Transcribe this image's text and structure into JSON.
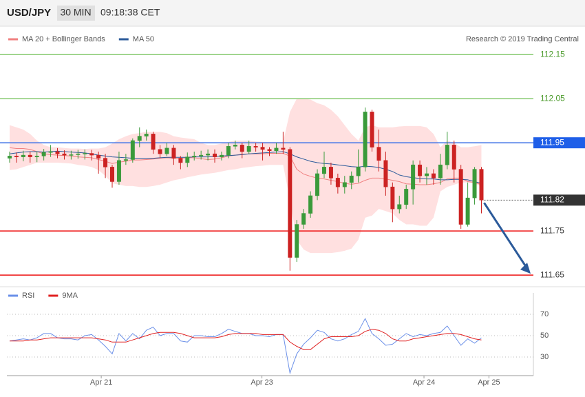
{
  "chart_data": [
    {
      "type": "candlestick",
      "title": "USD/JPY",
      "timeframe": "30 MIN",
      "time": "09:18:38 CET",
      "credit": "Research © 2019 Trading Central",
      "xlim": [
        -0.4,
        76.6
      ],
      "ylim": [
        111.633,
        112.18
      ],
      "up_color": "#3a9a3a",
      "down_color": "#cc2222",
      "open": [
        111.915,
        111.92,
        111.918,
        111.922,
        111.918,
        111.92,
        111.928,
        111.93,
        111.925,
        111.922,
        111.923,
        111.925,
        111.926,
        111.922,
        111.915,
        111.895,
        111.862,
        111.91,
        111.912,
        111.955,
        111.965,
        111.97,
        111.935,
        111.925,
        111.938,
        111.915,
        111.905,
        111.918,
        111.92,
        111.922,
        111.925,
        111.918,
        111.922,
        111.942,
        111.945,
        111.93,
        111.942,
        111.94,
        111.935,
        111.932,
        111.938,
        111.935,
        111.69,
        111.765,
        111.79,
        111.83,
        111.88,
        111.895,
        111.87,
        111.85,
        111.86,
        111.875,
        111.895,
        112.02,
        111.94,
        111.91,
        111.85,
        111.8,
        111.81,
        111.845,
        111.9,
        111.875,
        111.88,
        111.87,
        111.9,
        111.945,
        111.89,
        111.765,
        111.825,
        111.89
      ],
      "high": [
        111.93,
        111.928,
        111.932,
        111.93,
        111.93,
        111.936,
        111.945,
        111.938,
        111.933,
        111.932,
        111.934,
        111.935,
        111.934,
        111.93,
        111.925,
        111.9,
        111.93,
        111.925,
        111.96,
        111.985,
        111.98,
        111.975,
        111.945,
        111.95,
        111.945,
        111.92,
        111.928,
        111.93,
        111.932,
        111.935,
        111.935,
        111.93,
        111.95,
        111.955,
        111.95,
        111.955,
        111.95,
        111.95,
        111.94,
        111.95,
        111.975,
        111.94,
        111.775,
        111.8,
        111.84,
        111.89,
        111.93,
        111.905,
        111.88,
        111.875,
        111.885,
        111.935,
        112.03,
        112.025,
        111.98,
        111.93,
        111.86,
        111.83,
        111.855,
        111.91,
        111.91,
        111.895,
        111.89,
        111.925,
        111.975,
        111.955,
        111.9,
        111.86,
        111.895,
        111.895
      ],
      "low": [
        111.905,
        111.905,
        111.908,
        111.905,
        111.906,
        111.91,
        111.918,
        111.915,
        111.912,
        111.912,
        111.914,
        111.912,
        111.91,
        111.88,
        111.87,
        111.848,
        111.855,
        111.9,
        111.905,
        111.94,
        111.955,
        111.925,
        111.915,
        111.92,
        111.9,
        111.89,
        111.895,
        111.91,
        111.912,
        111.91,
        111.905,
        111.91,
        111.915,
        111.935,
        111.915,
        111.925,
        111.93,
        111.91,
        111.92,
        111.925,
        111.925,
        111.66,
        111.68,
        111.755,
        111.78,
        111.82,
        111.87,
        111.855,
        111.835,
        111.835,
        111.845,
        111.86,
        111.885,
        111.93,
        111.885,
        111.83,
        111.77,
        111.79,
        111.8,
        111.81,
        111.86,
        111.855,
        111.855,
        111.855,
        111.89,
        111.86,
        111.755,
        111.76,
        111.81,
        111.79
      ],
      "close": [
        111.92,
        111.918,
        111.922,
        111.918,
        111.92,
        111.928,
        111.93,
        111.925,
        111.922,
        111.923,
        111.925,
        111.926,
        111.922,
        111.915,
        111.895,
        111.862,
        111.91,
        111.912,
        111.955,
        111.965,
        111.97,
        111.935,
        111.925,
        111.938,
        111.915,
        111.905,
        111.918,
        111.92,
        111.922,
        111.925,
        111.918,
        111.922,
        111.942,
        111.945,
        111.93,
        111.942,
        111.94,
        111.935,
        111.932,
        111.938,
        111.935,
        111.69,
        111.765,
        111.79,
        111.83,
        111.88,
        111.895,
        111.87,
        111.85,
        111.86,
        111.875,
        111.895,
        112.02,
        111.94,
        111.91,
        111.85,
        111.8,
        111.81,
        111.845,
        111.9,
        111.875,
        111.88,
        111.87,
        111.9,
        111.945,
        111.89,
        111.765,
        111.825,
        111.89,
        111.82
      ],
      "series": [
        {
          "name": "MA 20 + Bollinger Bands",
          "color": "#f08080",
          "band_color": "#ffe0e0",
          "values": [
            111.939,
            111.937,
            111.937,
            111.935,
            111.93,
            111.925,
            111.923,
            111.922,
            111.921,
            111.92,
            111.918,
            111.917,
            111.916,
            111.912,
            111.908,
            111.903,
            111.906,
            111.908,
            111.911,
            111.911,
            111.912,
            111.913,
            111.915,
            111.916,
            111.915,
            111.915,
            111.916,
            111.916,
            111.914,
            111.912,
            111.913,
            111.916,
            111.92,
            111.922,
            111.924,
            111.925,
            111.925,
            111.925,
            111.926,
            111.926,
            111.926,
            111.92,
            111.89,
            111.879,
            111.874,
            111.87,
            111.868,
            111.865,
            111.862,
            111.858,
            111.856,
            111.858,
            111.865,
            111.87,
            111.87,
            111.868,
            111.865,
            111.862,
            111.857,
            111.856,
            111.855,
            111.855,
            111.857,
            111.86,
            111.868,
            111.87,
            111.87,
            111.862,
            111.86,
            111.855
          ],
          "upper": [
            111.99,
            111.985,
            111.98,
            111.97,
            111.955,
            111.945,
            111.94,
            111.94,
            111.938,
            111.937,
            111.937,
            111.936,
            111.937,
            111.937,
            111.94,
            111.948,
            111.958,
            111.965,
            111.97,
            111.972,
            111.975,
            111.975,
            111.975,
            111.972,
            111.965,
            111.962,
            111.96,
            111.958,
            111.95,
            111.945,
            111.945,
            111.948,
            111.952,
            111.955,
            111.955,
            111.955,
            111.953,
            111.952,
            111.952,
            111.952,
            111.952,
            112.02,
            112.05,
            112.05,
            112.048,
            112.04,
            112.035,
            112.025,
            112.01,
            111.99,
            111.97,
            111.955,
            111.985,
            111.99,
            111.985,
            111.985,
            111.985,
            111.987,
            111.988,
            111.988,
            111.988,
            111.985,
            111.97,
            111.94,
            111.955,
            111.95,
            111.94,
            111.94,
            111.942,
            111.945
          ],
          "lower": [
            111.888,
            111.89,
            111.895,
            111.9,
            111.905,
            111.905,
            111.905,
            111.905,
            111.904,
            111.903,
            111.9,
            111.898,
            111.895,
            111.888,
            111.875,
            111.858,
            111.855,
            111.852,
            111.852,
            111.85,
            111.85,
            111.852,
            111.855,
            111.86,
            111.865,
            111.868,
            111.872,
            111.875,
            111.878,
            111.88,
            111.882,
            111.885,
            111.888,
            111.89,
            111.893,
            111.895,
            111.897,
            111.898,
            111.9,
            111.9,
            111.9,
            111.82,
            111.73,
            111.708,
            111.7,
            111.7,
            111.7,
            111.7,
            111.702,
            111.705,
            111.71,
            111.73,
            111.78,
            111.785,
            111.8,
            111.795,
            111.79,
            111.775,
            111.765,
            111.765,
            111.762,
            111.762,
            111.78,
            111.84,
            111.85,
            111.855,
            111.86,
            111.86,
            111.858,
            111.85
          ]
        },
        {
          "name": "MA 50",
          "color": "#2b5a9a",
          "values": [
            111.925,
            111.927,
            111.929,
            111.93,
            111.93,
            111.929,
            111.93,
            111.931,
            111.93,
            111.929,
            111.928,
            111.927,
            111.925,
            111.922,
            111.92,
            111.918,
            111.917,
            111.916,
            111.915,
            111.915,
            111.915,
            111.915,
            111.916,
            111.917,
            111.917,
            111.917,
            111.917,
            111.918,
            111.918,
            111.918,
            111.919,
            111.92,
            111.921,
            111.922,
            111.923,
            111.925,
            111.926,
            111.927,
            111.928,
            111.929,
            111.93,
            111.925,
            111.918,
            111.913,
            111.908,
            111.905,
            111.903,
            111.902,
            111.9,
            111.898,
            111.896,
            111.895,
            111.897,
            111.896,
            111.894,
            111.89,
            111.885,
            111.877,
            111.873,
            111.871,
            111.869,
            111.868,
            111.868,
            111.866,
            111.866,
            111.867,
            111.867,
            111.866,
            111.862,
            111.858
          ]
        }
      ],
      "levels": [
        {
          "value": 112.15,
          "color": "#8fce7a",
          "label_color": "#4a9a2a",
          "label_box": false,
          "dotted": false
        },
        {
          "value": 112.05,
          "color": "#8fce7a",
          "label_color": "#4a9a2a",
          "label_box": false,
          "dotted": false
        },
        {
          "value": 111.95,
          "color": "#4a7ae8",
          "label_color": "#1f5fe8",
          "label_box": true,
          "dotted": false
        },
        {
          "value": 111.82,
          "color": "#555555",
          "label_color": "#333333",
          "label_box": true,
          "dotted": true
        },
        {
          "value": 111.75,
          "color": "#ee1111",
          "label_color": "#333333",
          "label_box": false,
          "dotted": false
        },
        {
          "value": 111.65,
          "color": "#ee1111",
          "label_color": "#333333",
          "label_box": false,
          "dotted": false
        }
      ],
      "forecast_color": "#2b5a9a"
    },
    {
      "type": "line",
      "xlim": [
        -0.4,
        76.6
      ],
      "ylim": [
        12.6,
        80.3
      ],
      "yticks": [
        30,
        50,
        70
      ],
      "grid": true,
      "xticks": [
        {
          "value": 13.4,
          "label": "Apr 21"
        },
        {
          "value": 36.9,
          "label": "Apr 23"
        },
        {
          "value": 60.6,
          "label": "Apr 24"
        },
        {
          "value": 70.1,
          "label": "Apr 25"
        }
      ],
      "series": [
        {
          "name": "RSI",
          "color": "#6a8fe8",
          "values": [
            45,
            46,
            47,
            46,
            48,
            52,
            52,
            48,
            47,
            47,
            46,
            50,
            51,
            46,
            40,
            33,
            52,
            45,
            52,
            47,
            55,
            58,
            50,
            52,
            52,
            45,
            44,
            50,
            50,
            49,
            49,
            52,
            56,
            54,
            52,
            52,
            50,
            50,
            49,
            51,
            51,
            15,
            33,
            42,
            48,
            55,
            53,
            47,
            45,
            47,
            51,
            54,
            66,
            52,
            47,
            41,
            42,
            47,
            52,
            49,
            51,
            50,
            52,
            53,
            59,
            50,
            41,
            47,
            43,
            48
          ]
        },
        {
          "name": "9MA",
          "color": "#e02020",
          "values": [
            45,
            45,
            45,
            46,
            46,
            47,
            48,
            48,
            48,
            48,
            48,
            48,
            48,
            47,
            46,
            44,
            44,
            44,
            46,
            48,
            50,
            52,
            53,
            53,
            53,
            52,
            50,
            48,
            48,
            48,
            48,
            49,
            51,
            52,
            52,
            52,
            52,
            51,
            51,
            51,
            51,
            44,
            40,
            37,
            37,
            42,
            47,
            49,
            49,
            49,
            49,
            50,
            54,
            56,
            55,
            52,
            47,
            45,
            45,
            47,
            48,
            49,
            50,
            51,
            52,
            52,
            51,
            49,
            47,
            46
          ]
        }
      ]
    }
  ]
}
